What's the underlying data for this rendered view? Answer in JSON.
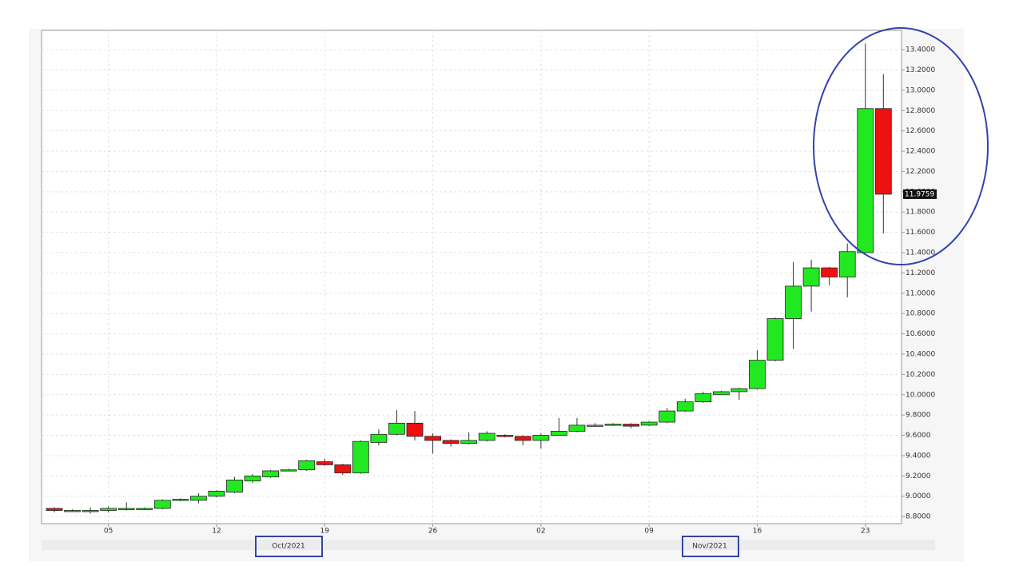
{
  "chart_data": {
    "type": "candlestick",
    "categories": [
      null,
      null,
      null,
      "05",
      null,
      null,
      null,
      null,
      null,
      "12",
      null,
      null,
      null,
      null,
      null,
      "19",
      null,
      null,
      null,
      null,
      null,
      "26",
      null,
      null,
      null,
      null,
      null,
      "02",
      null,
      null,
      null,
      null,
      null,
      "09",
      null,
      null,
      null,
      null,
      null,
      "16",
      null,
      null,
      null,
      null,
      null,
      "23",
      null
    ],
    "open": [
      8.88,
      8.86,
      8.85,
      8.86,
      8.87,
      8.88,
      8.88,
      8.96,
      8.96,
      9.0,
      9.04,
      9.15,
      9.19,
      9.25,
      9.26,
      9.34,
      9.31,
      9.23,
      9.53,
      9.61,
      9.72,
      9.59,
      9.55,
      9.52,
      9.55,
      9.6,
      9.59,
      9.55,
      9.6,
      9.64,
      9.7,
      9.7,
      9.71,
      9.7,
      9.73,
      9.84,
      9.93,
      10.0,
      10.03,
      10.06,
      10.34,
      10.75,
      11.07,
      11.25,
      11.16,
      11.4,
      12.82
    ],
    "high": [
      8.89,
      8.87,
      8.89,
      8.9,
      8.94,
      8.89,
      8.97,
      8.98,
      9.03,
      9.06,
      9.19,
      9.22,
      9.26,
      9.27,
      9.36,
      9.37,
      9.32,
      9.55,
      9.66,
      9.85,
      9.84,
      9.62,
      9.56,
      9.63,
      9.64,
      9.61,
      9.6,
      9.62,
      9.77,
      9.77,
      9.72,
      9.72,
      9.72,
      9.74,
      9.87,
      9.96,
      10.03,
      10.04,
      10.07,
      10.44,
      10.76,
      11.31,
      11.33,
      11.26,
      11.49,
      13.46,
      13.16
    ],
    "low": [
      8.84,
      8.85,
      8.83,
      8.84,
      8.86,
      8.87,
      8.87,
      8.95,
      8.93,
      8.99,
      9.03,
      9.13,
      9.18,
      9.25,
      9.25,
      9.3,
      9.21,
      9.22,
      9.5,
      9.6,
      9.55,
      9.42,
      9.49,
      9.51,
      9.54,
      9.58,
      9.5,
      9.47,
      9.6,
      9.63,
      9.69,
      9.69,
      9.67,
      9.69,
      9.72,
      9.83,
      9.92,
      10.0,
      9.95,
      10.05,
      10.33,
      10.45,
      10.82,
      11.08,
      10.96,
      11.4,
      11.59
    ],
    "close": [
      8.86,
      8.86,
      8.86,
      8.88,
      8.88,
      8.88,
      8.96,
      8.97,
      9.0,
      9.05,
      9.16,
      9.2,
      9.25,
      9.26,
      9.35,
      9.31,
      9.23,
      9.54,
      9.61,
      9.72,
      9.59,
      9.55,
      9.52,
      9.55,
      9.62,
      9.59,
      9.55,
      9.6,
      9.64,
      9.7,
      9.7,
      9.71,
      9.69,
      9.73,
      9.84,
      9.93,
      10.01,
      10.03,
      10.06,
      10.34,
      10.75,
      11.07,
      11.25,
      11.16,
      11.41,
      12.82,
      11.9759
    ],
    "up_color": "#22e822",
    "down_color": "#ee1111",
    "ylim": [
      8.73,
      13.59
    ],
    "yticks": [
      {
        "value": 8.8,
        "label": "8.8000"
      },
      {
        "value": 9.0,
        "label": "9.0000"
      },
      {
        "value": 9.2,
        "label": "9.2000"
      },
      {
        "value": 9.4,
        "label": "9.4000"
      },
      {
        "value": 9.6,
        "label": "9.6000"
      },
      {
        "value": 9.8,
        "label": "9.8000"
      },
      {
        "value": 10.0,
        "label": "10.0000"
      },
      {
        "value": 10.2,
        "label": "10.2000"
      },
      {
        "value": 10.4,
        "label": "10.4000"
      },
      {
        "value": 10.6,
        "label": "10.6000"
      },
      {
        "value": 10.8,
        "label": "10.8000"
      },
      {
        "value": 11.0,
        "label": "11.0000"
      },
      {
        "value": 11.2,
        "label": "11.2000"
      },
      {
        "value": 11.4,
        "label": "11.4000"
      },
      {
        "value": 11.6,
        "label": "11.6000"
      },
      {
        "value": 11.8,
        "label": "11.8000"
      },
      {
        "value": 12.0,
        "label": "12.0000"
      },
      {
        "value": 12.2,
        "label": "12.2000"
      },
      {
        "value": 12.4,
        "label": "12.4000"
      },
      {
        "value": 12.6,
        "label": "12.6000"
      },
      {
        "value": 12.8,
        "label": "12.8000"
      },
      {
        "value": 13.0,
        "label": "13.0000"
      },
      {
        "value": 13.2,
        "label": "13.2000"
      },
      {
        "value": 13.4,
        "label": "13.4000"
      }
    ],
    "x_group_labels": [
      "Oct/2021",
      "Nov/2021"
    ],
    "grid": true
  }
}
